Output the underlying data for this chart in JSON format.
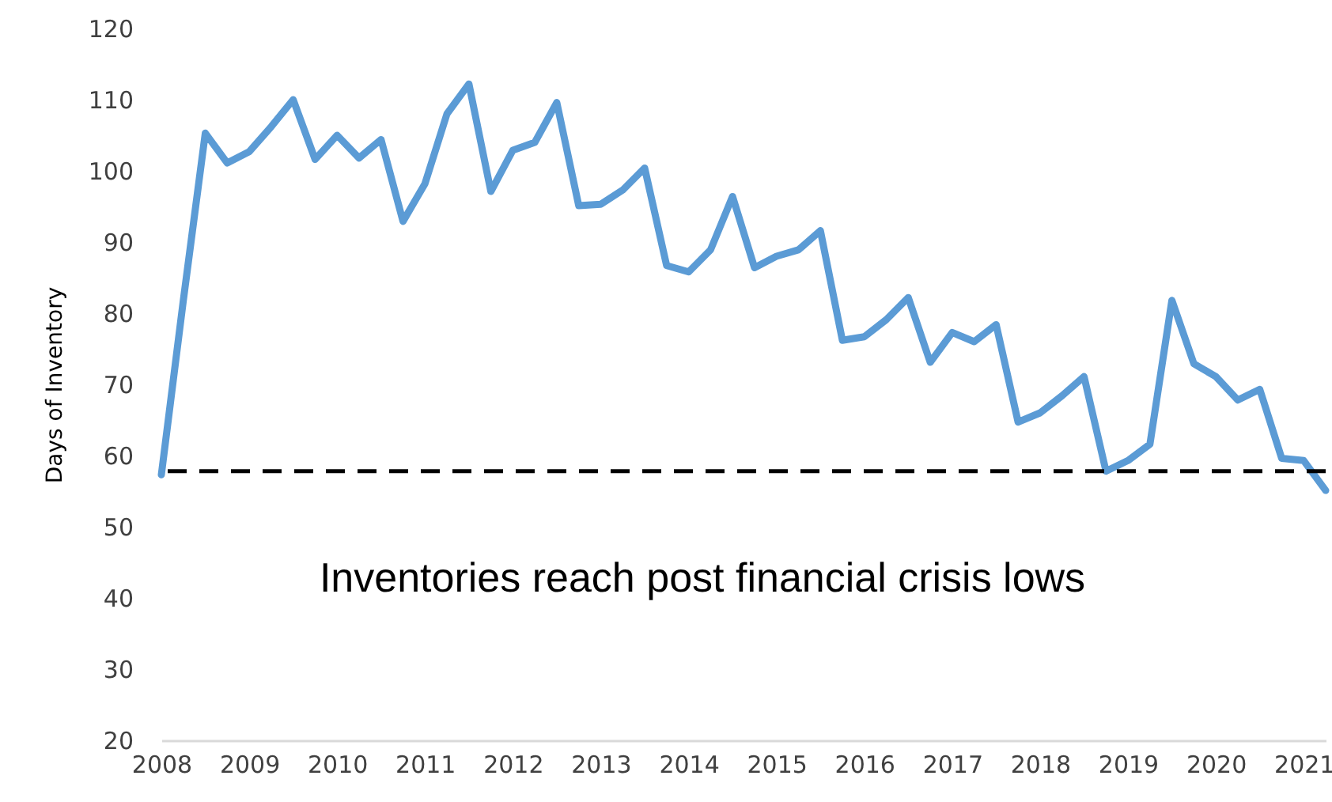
{
  "chart_data": {
    "type": "line",
    "ylabel": "Days of Inventory",
    "x": [
      2008,
      2008.25,
      2008.5,
      2008.75,
      2009,
      2009.25,
      2009.5,
      2009.75,
      2010,
      2010.25,
      2010.5,
      2010.75,
      2011,
      2011.25,
      2011.5,
      2011.75,
      2012,
      2012.25,
      2012.5,
      2012.75,
      2013,
      2013.25,
      2013.5,
      2013.75,
      2014,
      2014.25,
      2014.5,
      2014.75,
      2015,
      2015.25,
      2015.5,
      2015.75,
      2016,
      2016.25,
      2016.5,
      2016.75,
      2017,
      2017.25,
      2017.5,
      2017.75,
      2018,
      2018.25,
      2018.5,
      2018.75,
      2019,
      2019.25,
      2019.5,
      2019.75,
      2020,
      2020.25,
      2020.5,
      2020.75,
      2021,
      2021.25
    ],
    "series": [
      {
        "color": "#5b9bd5",
        "values": [
          57.3,
          81.8,
          105.3,
          101.1,
          102.7,
          106.2,
          110,
          101.6,
          105,
          101.8,
          104.4,
          92.9,
          98.2,
          108,
          112.2,
          97.1,
          102.9,
          104,
          109.6,
          95.1,
          95.3,
          97.3,
          100.4,
          86.7,
          85.8,
          88.9,
          96.4,
          86.4,
          88,
          88.9,
          91.6,
          76.2,
          76.7,
          79.1,
          82.2,
          73.1,
          77.3,
          76,
          78.4,
          64.7,
          66,
          68.4,
          71.1,
          57.8,
          59.3,
          61.6,
          81.8,
          72.9,
          71.1,
          67.8,
          69.3,
          59.6,
          59.3,
          55.1
        ]
      }
    ],
    "xlim": [
      2008,
      2021.25
    ],
    "xticks": [
      2008,
      2009,
      2010,
      2011,
      2012,
      2013,
      2014,
      2015,
      2016,
      2017,
      2018,
      2019,
      2020,
      2021
    ],
    "ylim": [
      20,
      120
    ],
    "yticks": [
      20,
      30,
      40,
      50,
      60,
      70,
      80,
      90,
      100,
      110,
      120
    ],
    "ref_lines": [
      {
        "axis": "y",
        "value": 57.8,
        "color": "#000000",
        "line_style": "dashed"
      }
    ],
    "annotations": [
      "Inventories reach post financial crisis lows"
    ],
    "grid": false,
    "marker": "none",
    "line_style": "solid"
  }
}
